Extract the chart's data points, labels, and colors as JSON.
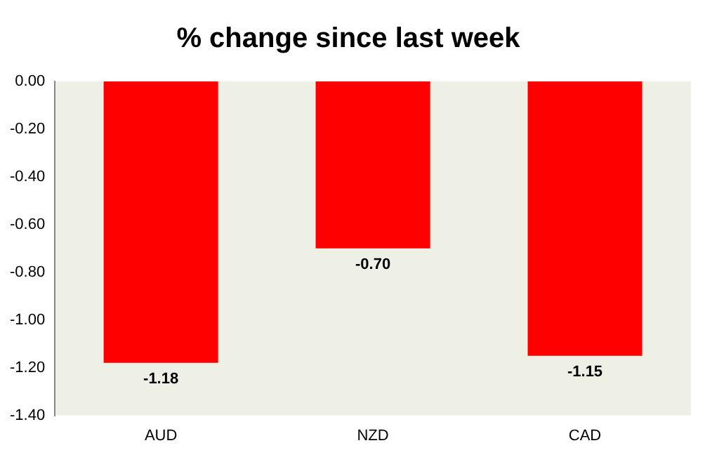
{
  "chart_data": {
    "type": "bar",
    "title": "% change since last week",
    "categories": [
      "AUD",
      "NZD",
      "CAD"
    ],
    "series": [
      {
        "color": "#ff0000",
        "values": [
          -1.18,
          -0.7,
          -1.15
        ],
        "value_labels": [
          "-1.18",
          "-0.70",
          "-1.15"
        ]
      }
    ],
    "ylim": [
      -1.4,
      0
    ],
    "yticks": [
      {
        "value": 0,
        "label": "0.00"
      },
      {
        "value": -0.2,
        "label": "-0.20"
      },
      {
        "value": -0.4,
        "label": "-0.40"
      },
      {
        "value": -0.6,
        "label": "-0.60"
      },
      {
        "value": -0.8,
        "label": "-0.80"
      },
      {
        "value": -1.0,
        "label": "-1.00"
      },
      {
        "value": -1.2,
        "label": "-1.20"
      },
      {
        "value": -1.4,
        "label": "-1.40"
      }
    ],
    "grid": false,
    "legend": false
  }
}
